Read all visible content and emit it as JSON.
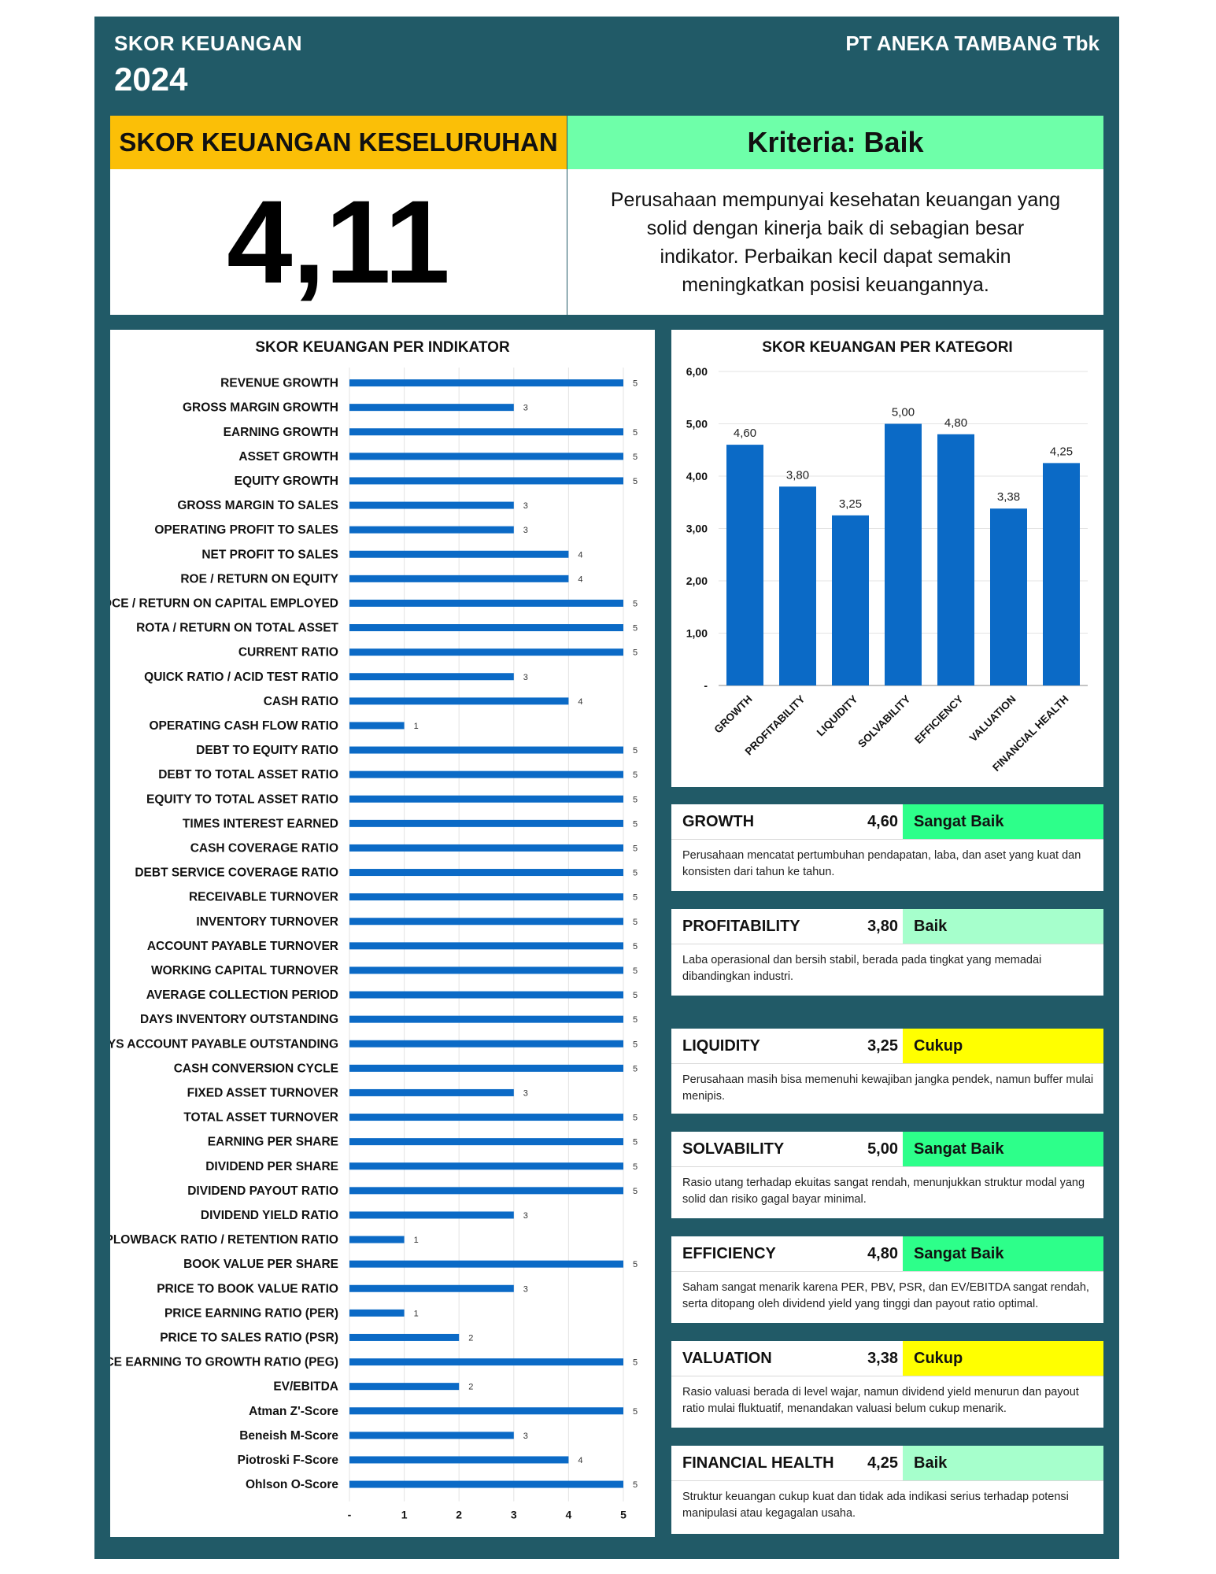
{
  "header": {
    "title": "SKOR KEUANGAN",
    "year": "2024",
    "company": "PT ANEKA TAMBANG Tbk"
  },
  "overall": {
    "label": "SKOR KEUANGAN KESELURUHAN",
    "score": "4,11",
    "criteria": "Kriteria: Baik",
    "description": "Perusahaan mempunyai kesehatan keuangan yang solid dengan kinerja baik di sebagian besar indikator. Perbaikan kecil dapat semakin meningkatkan posisi keuangannya."
  },
  "colors": {
    "frame": "#215a67",
    "bar": "#0b6ac6",
    "overall_head": "#fbbf07",
    "criteria_head": "#6effa9",
    "sangat_baik": "#2dff8a",
    "baik": "#a6ffcc",
    "cukup": "#ffff00"
  },
  "chart_data": [
    {
      "type": "bar",
      "orientation": "horizontal",
      "title": "SKOR KEUANGAN PER INDIKATOR",
      "xlim": [
        0,
        5
      ],
      "xticks": [
        "-",
        "1",
        "2",
        "3",
        "4",
        "5"
      ],
      "grid": true,
      "categories": [
        "REVENUE GROWTH",
        "GROSS MARGIN GROWTH",
        "EARNING GROWTH",
        "ASSET GROWTH",
        "EQUITY GROWTH",
        "GROSS MARGIN TO SALES",
        "OPERATING PROFIT TO SALES",
        "NET PROFIT TO SALES",
        "ROE / RETURN ON EQUITY",
        "ROCE / RETURN ON CAPITAL EMPLOYED",
        "ROTA / RETURN ON TOTAL ASSET",
        "CURRENT RATIO",
        "QUICK RATIO / ACID TEST RATIO",
        "CASH RATIO",
        "OPERATING CASH FLOW RATIO",
        "DEBT TO EQUITY RATIO",
        "DEBT TO TOTAL ASSET RATIO",
        "EQUITY TO TOTAL ASSET RATIO",
        "TIMES INTEREST EARNED",
        "CASH COVERAGE RATIO",
        "DEBT SERVICE COVERAGE RATIO",
        "RECEIVABLE TURNOVER",
        "INVENTORY TURNOVER",
        "ACCOUNT PAYABLE TURNOVER",
        "WORKING CAPITAL TURNOVER",
        "AVERAGE COLLECTION PERIOD",
        "DAYS INVENTORY OUTSTANDING",
        "DAYS ACCOUNT PAYABLE OUTSTANDING",
        "CASH CONVERSION CYCLE",
        "FIXED ASSET TURNOVER",
        "TOTAL ASSET TURNOVER",
        "EARNING PER SHARE",
        "DIVIDEND PER SHARE",
        "DIVIDEND PAYOUT RATIO",
        "DIVIDEND YIELD RATIO",
        "PLOWBACK RATIO / RETENTION RATIO",
        "BOOK VALUE PER SHARE",
        "PRICE TO BOOK VALUE RATIO",
        "PRICE EARNING RATIO (PER)",
        "PRICE TO SALES RATIO (PSR)",
        "PRICE EARNING TO GROWTH RATIO (PEG)",
        "EV/EBITDA",
        "Atman Z'-Score",
        "Beneish M-Score",
        "Piotroski F-Score",
        "Ohlson O-Score"
      ],
      "values": [
        5,
        3,
        5,
        5,
        5,
        3,
        3,
        4,
        4,
        5,
        5,
        5,
        3,
        4,
        1,
        5,
        5,
        5,
        5,
        5,
        5,
        5,
        5,
        5,
        5,
        5,
        5,
        5,
        5,
        3,
        5,
        5,
        5,
        5,
        3,
        1,
        5,
        3,
        1,
        2,
        5,
        2,
        5,
        3,
        4,
        5
      ]
    },
    {
      "type": "bar",
      "title": "SKOR KEUANGAN PER KATEGORI",
      "ylim": [
        0,
        6
      ],
      "yticks": [
        "-",
        "1,00",
        "2,00",
        "3,00",
        "4,00",
        "5,00",
        "6,00"
      ],
      "grid": true,
      "categories": [
        "GROWTH",
        "PROFITABILITY",
        "LIQUIDITY",
        "SOLVABILITY",
        "EFFICIENCY",
        "VALUATION",
        "FINANCIAL HEALTH"
      ],
      "values": [
        4.6,
        3.8,
        3.25,
        5.0,
        4.8,
        3.38,
        4.25
      ],
      "labels": [
        "4,60",
        "3,80",
        "3,25",
        "5,00",
        "4,80",
        "3,38",
        "4,25"
      ]
    }
  ],
  "categories": [
    {
      "name": "GROWTH",
      "score": "4,60",
      "criteria": "Sangat Baik",
      "level": "sangat_baik",
      "description": "Perusahaan mencatat pertumbuhan pendapatan, laba, dan aset yang kuat dan konsisten dari tahun ke tahun."
    },
    {
      "name": "PROFITABILITY",
      "score": "3,80",
      "criteria": "Baik",
      "level": "baik",
      "description": "Laba operasional dan bersih stabil, berada pada tingkat yang memadai dibandingkan industri."
    },
    {
      "name": "LIQUIDITY",
      "score": "3,25",
      "criteria": "Cukup",
      "level": "cukup",
      "description": "Perusahaan masih bisa memenuhi kewajiban jangka pendek, namun buffer mulai menipis."
    },
    {
      "name": "SOLVABILITY",
      "score": "5,00",
      "criteria": "Sangat Baik",
      "level": "sangat_baik",
      "description": "Rasio utang terhadap ekuitas sangat rendah, menunjukkan struktur modal yang solid dan risiko gagal bayar minimal."
    },
    {
      "name": "EFFICIENCY",
      "score": "4,80",
      "criteria": "Sangat Baik",
      "level": "sangat_baik",
      "description": "Saham sangat menarik karena PER, PBV, PSR, dan EV/EBITDA sangat rendah, serta ditopang oleh dividend yield yang tinggi dan payout ratio optimal."
    },
    {
      "name": "VALUATION",
      "score": "3,38",
      "criteria": "Cukup",
      "level": "cukup",
      "description": "Rasio valuasi berada di level wajar, namun dividend yield menurun dan payout ratio mulai fluktuatif, menandakan valuasi belum cukup menarik."
    },
    {
      "name": "FINANCIAL HEALTH",
      "score": "4,25",
      "criteria": "Baik",
      "level": "baik",
      "description": "Struktur keuangan cukup kuat dan tidak ada indikasi serius terhadap potensi manipulasi atau kegagalan usaha."
    }
  ]
}
